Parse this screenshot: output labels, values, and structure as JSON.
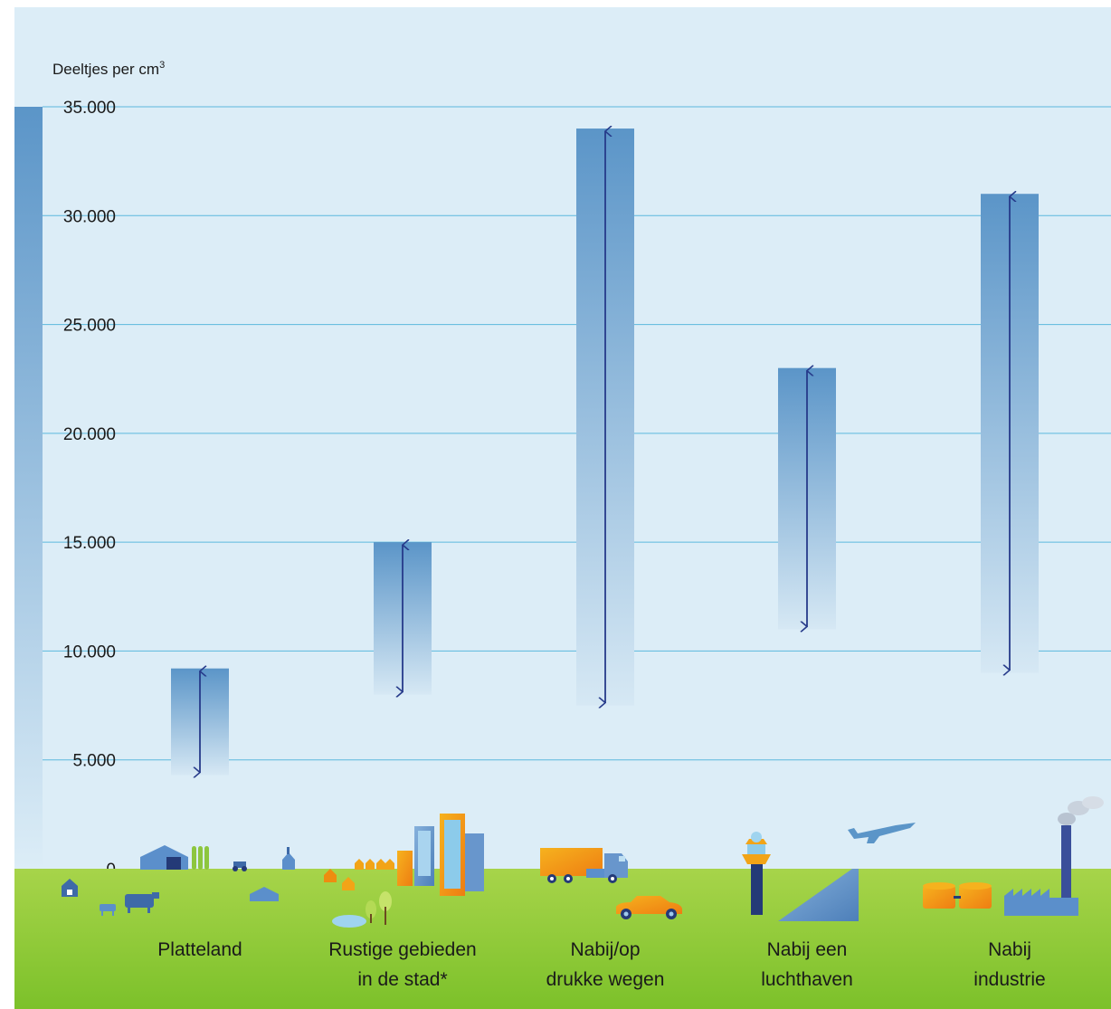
{
  "colors": {
    "sky": "#dcedf7",
    "grid": "#5bb8dd",
    "bar_top": "#5b95c8",
    "bar_bottom": "#d6e8f4",
    "arrow": "#263a8a",
    "grass_top": "#9ccf3e",
    "grass_bottom": "#7cc12a"
  },
  "chart_data": {
    "type": "floating_bar",
    "ylabel": "Deeltjes per cm",
    "ylabel_superscript": "3",
    "ylim": [
      0,
      35000
    ],
    "yticks": [
      {
        "value": 0,
        "label": "0"
      },
      {
        "value": 5000,
        "label": "5.000"
      },
      {
        "value": 10000,
        "label": "10.000"
      },
      {
        "value": 15000,
        "label": "15.000"
      },
      {
        "value": 20000,
        "label": "20.000"
      },
      {
        "value": 25000,
        "label": "25.000"
      },
      {
        "value": 30000,
        "label": "30.000"
      },
      {
        "value": 35000,
        "label": "35.000"
      }
    ],
    "categories": [
      {
        "line1": "Platteland",
        "line2": "",
        "low": 4300,
        "high": 9200
      },
      {
        "line1": "Rustige gebieden",
        "line2": "in de stad*",
        "low": 8000,
        "high": 15000
      },
      {
        "line1": "Nabij/op",
        "line2": "drukke wegen",
        "low": 7500,
        "high": 34000
      },
      {
        "line1": "Nabij een",
        "line2": "luchthaven",
        "low": 11000,
        "high": 23000
      },
      {
        "line1": "Nabij",
        "line2": "industrie",
        "low": 9000,
        "high": 31000
      }
    ],
    "grid": true
  }
}
